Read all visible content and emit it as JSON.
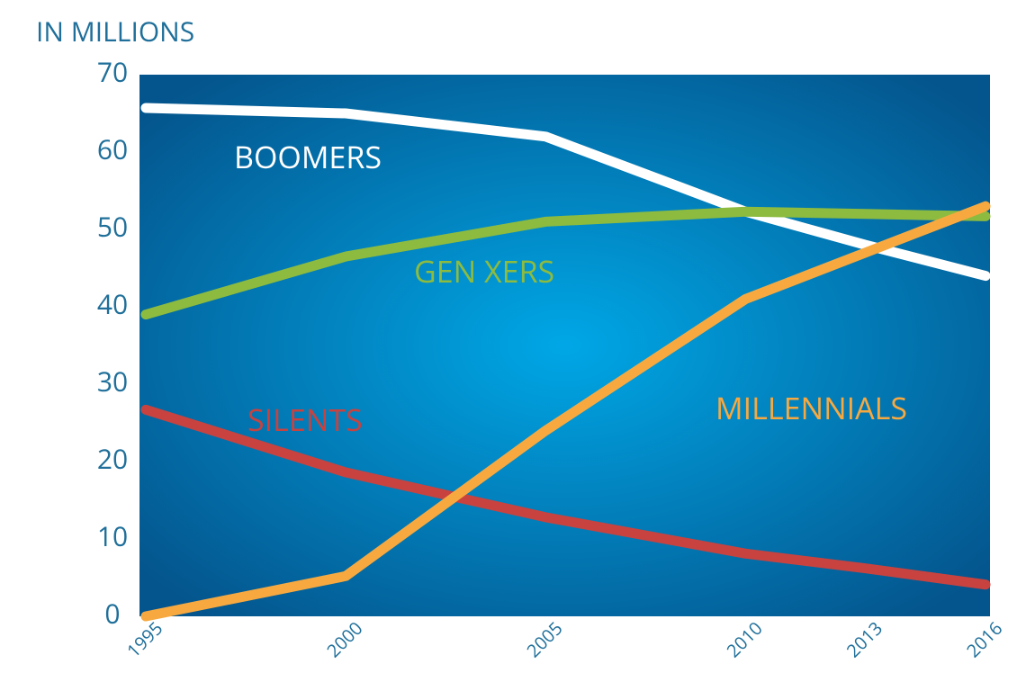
{
  "chart_data": {
    "type": "line",
    "y_axis_label": "IN MILLIONS",
    "x": [
      1995,
      2000,
      2005,
      2010,
      2013,
      2016
    ],
    "xlim": [
      1995,
      2016
    ],
    "xticks": [
      1995,
      2000,
      2005,
      2010,
      2013,
      2016
    ],
    "ylim": [
      0,
      70
    ],
    "yticks": [
      0,
      10,
      20,
      30,
      40,
      50,
      60,
      70
    ],
    "series": [
      {
        "name": "BOOMERS",
        "color": "#ffffff",
        "values": [
          65.7,
          65,
          62,
          52.3,
          48,
          44
        ]
      },
      {
        "name": "GEN XERS",
        "color": "#8dbb3f",
        "values": [
          39,
          46.5,
          51,
          52.3,
          52,
          51.7
        ]
      },
      {
        "name": "SILENTS",
        "color": "#c8423f",
        "values": [
          26.7,
          18.6,
          12.8,
          8.1,
          6.2,
          4.1
        ]
      },
      {
        "name": "MILLENNIALS",
        "color": "#f7a940",
        "values": [
          0,
          5.2,
          24,
          41,
          47,
          53
        ]
      }
    ]
  }
}
